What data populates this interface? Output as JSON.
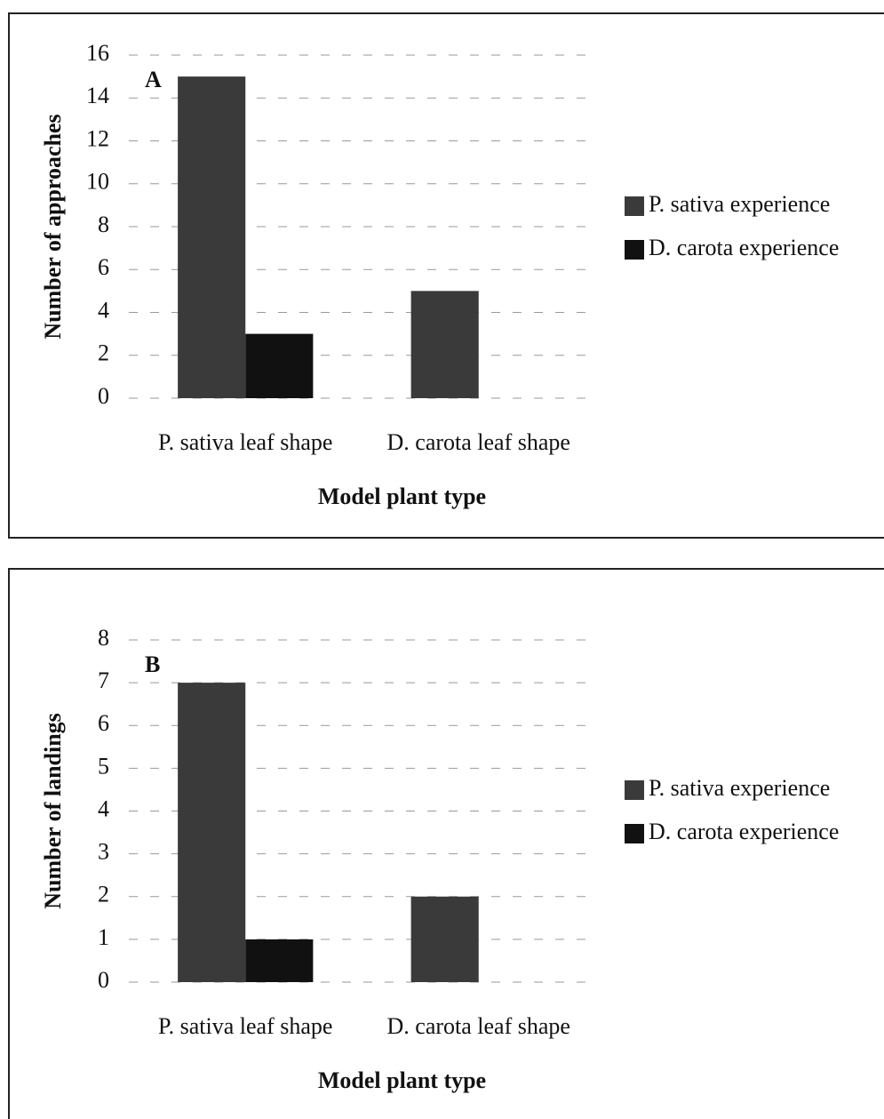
{
  "chart_data": [
    {
      "type": "bar",
      "annotation": "A",
      "categories": [
        "P. sativa leaf shape",
        "D. carota leaf shape"
      ],
      "series": [
        {
          "name": "P. sativa experience",
          "color": "#3a3a3a",
          "values": [
            15,
            5
          ]
        },
        {
          "name": "D. carota experience",
          "color": "#111111",
          "values": [
            3,
            0
          ]
        }
      ],
      "x_label": "Model plant type",
      "y_label": "Number of approaches",
      "ylim": [
        0,
        16
      ],
      "yticks": [
        0,
        2,
        4,
        6,
        8,
        10,
        12,
        14,
        16
      ],
      "grid": true,
      "legend": "right"
    },
    {
      "type": "bar",
      "annotation": "B",
      "categories": [
        "P. sativa leaf shape",
        "D. carota leaf shape"
      ],
      "series": [
        {
          "name": "P. sativa experience",
          "color": "#3a3a3a",
          "values": [
            7,
            2
          ]
        },
        {
          "name": "D. carota experience",
          "color": "#111111",
          "values": [
            1,
            0
          ]
        }
      ],
      "x_label": "Model plant type",
      "y_label": "Number of landings",
      "ylim": [
        0,
        8
      ],
      "yticks": [
        0,
        1,
        2,
        3,
        4,
        5,
        6,
        7,
        8
      ],
      "grid": true,
      "legend": "right"
    }
  ]
}
